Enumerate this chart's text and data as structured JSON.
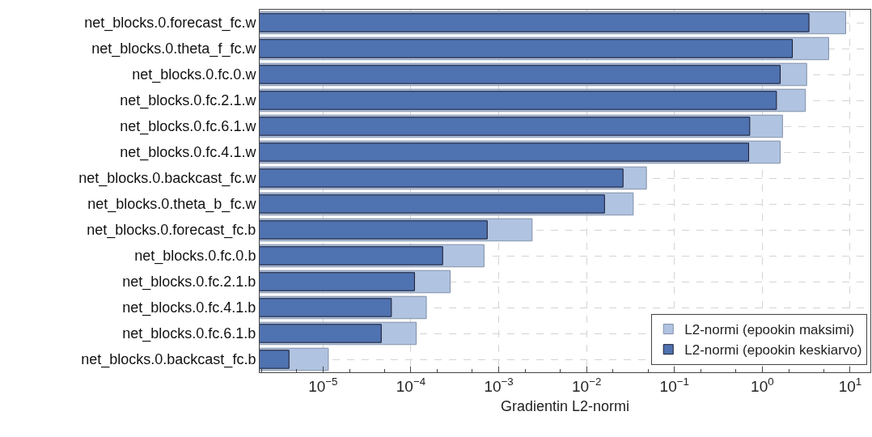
{
  "chart_data": {
    "type": "bar",
    "orientation": "horizontal",
    "xlabel": "Gradientin L2-normi",
    "categories": [
      "net_blocks.0.forecast_fc.w",
      "net_blocks.0.theta_f_fc.w",
      "net_blocks.0.fc.0.w",
      "net_blocks.0.fc.2.1.w",
      "net_blocks.0.fc.6.1.w",
      "net_blocks.0.fc.4.1.w",
      "net_blocks.0.backcast_fc.w",
      "net_blocks.0.theta_b_fc.w",
      "net_blocks.0.forecast_fc.b",
      "net_blocks.0.fc.0.b",
      "net_blocks.0.fc.2.1.b",
      "net_blocks.0.fc.4.1.b",
      "net_blocks.0.fc.6.1.b",
      "net_blocks.0.backcast_fc.b"
    ],
    "series": [
      {
        "name": "L2-normi (epookin maksimi)",
        "color": "#b0c3e0",
        "values": [
          8.9,
          5.7,
          3.2,
          3.1,
          1.7,
          1.6,
          0.048,
          0.034,
          0.0024,
          0.00068,
          0.00028,
          0.00015,
          0.000115,
          1.15e-05
        ]
      },
      {
        "name": "L2-normi (epookin keskiarvo)",
        "color": "#4f72b0",
        "values": [
          3.4,
          2.2,
          1.6,
          1.45,
          0.72,
          0.7,
          0.026,
          0.016,
          0.00074,
          0.00023,
          0.00011,
          6e-05,
          4.6e-05,
          4.1e-06
        ]
      }
    ],
    "log": "x",
    "xlim": [
      1.9e-06,
      17
    ],
    "xticks": [
      {
        "value": 1e-05,
        "label": "10$^{−5}$"
      },
      {
        "value": 0.0001,
        "label": "10$^{−4}$"
      },
      {
        "value": 0.001,
        "label": "10$^{−3}$"
      },
      {
        "value": 0.01,
        "label": "10$^{−2}$"
      },
      {
        "value": 0.1,
        "label": "10$^{−1}$"
      },
      {
        "value": 1,
        "label": "10$^{0}$"
      },
      {
        "value": 10,
        "label": "10$^{1}$"
      }
    ],
    "grid": true,
    "legend": "bottom right"
  }
}
